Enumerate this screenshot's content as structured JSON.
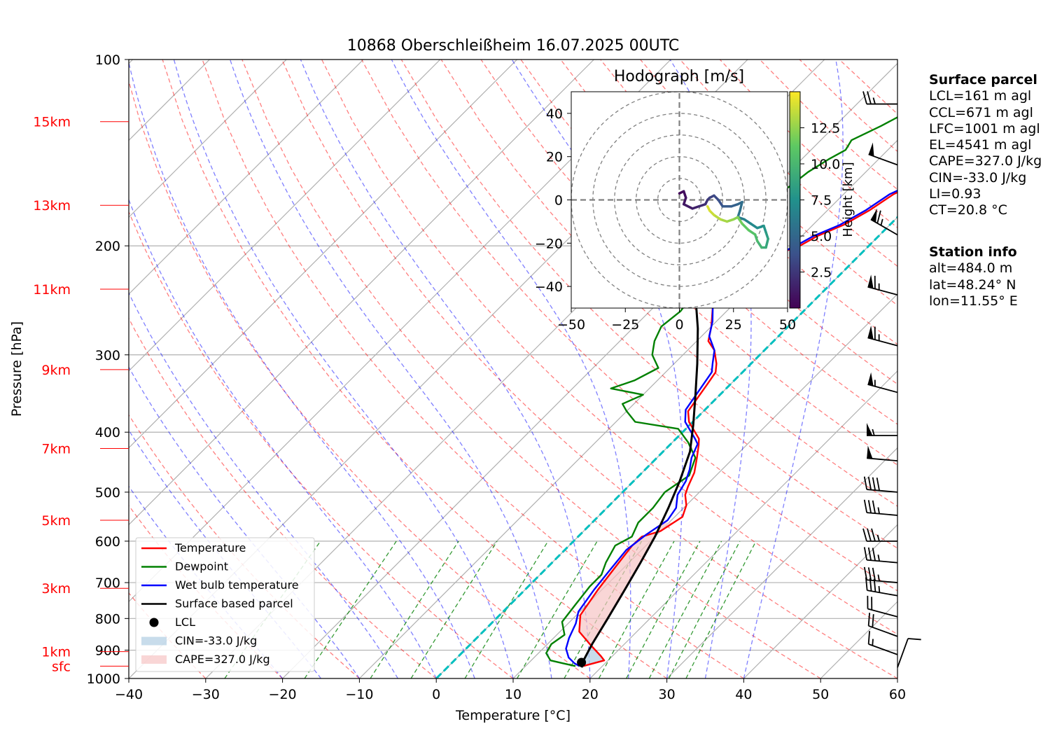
{
  "chart_data": {
    "type": "skew-t",
    "title": "10868 Oberschleißheim 16.07.2025 00UTC",
    "xlabel": "Temperature [°C]",
    "ylabel": "Pressure [hPa]",
    "xlim": [
      -40,
      60
    ],
    "ylim": [
      1000,
      100
    ],
    "x_ticks": [
      "−40",
      "−30",
      "−20",
      "−10",
      "0",
      "10",
      "20",
      "30",
      "40",
      "50",
      "60"
    ],
    "y_ticks": [
      {
        "p": 1000,
        "label": "1000"
      },
      {
        "p": 900,
        "label": "900"
      },
      {
        "p": 800,
        "label": "800"
      },
      {
        "p": 700,
        "label": "700"
      },
      {
        "p": 600,
        "label": "600"
      },
      {
        "p": 500,
        "label": "500"
      },
      {
        "p": 400,
        "label": "400"
      },
      {
        "p": 300,
        "label": "300"
      },
      {
        "p": 200,
        "label": "200"
      },
      {
        "p": 100,
        "label": "100"
      }
    ],
    "height_labels": [
      {
        "label": "sfc",
        "p": 955
      },
      {
        "label": "1km",
        "p": 905
      },
      {
        "label": "3km",
        "p": 715
      },
      {
        "label": "5km",
        "p": 555
      },
      {
        "label": "7km",
        "p": 425
      },
      {
        "label": "9km",
        "p": 317
      },
      {
        "label": "11km",
        "p": 235
      },
      {
        "label": "13km",
        "p": 172
      },
      {
        "label": "15km",
        "p": 126
      }
    ],
    "series": [
      {
        "name": "Temperature",
        "color": "#ff0000",
        "points": [
          [
            17.5,
            955
          ],
          [
            19.5,
            935
          ],
          [
            18.5,
            920
          ],
          [
            15.5,
            880
          ],
          [
            12.5,
            840
          ],
          [
            10.5,
            790
          ],
          [
            9.5,
            720
          ],
          [
            8.8,
            660
          ],
          [
            8.2,
            610
          ],
          [
            8.3,
            590
          ],
          [
            10.0,
            578
          ],
          [
            11.0,
            548
          ],
          [
            10.0,
            525
          ],
          [
            8.5,
            505
          ],
          [
            7.8,
            490
          ],
          [
            6.8,
            465
          ],
          [
            5.2,
            440
          ],
          [
            3.8,
            420
          ],
          [
            3.0,
            410
          ],
          [
            -0.5,
            385
          ],
          [
            -2.0,
            370
          ],
          [
            -3.0,
            335
          ],
          [
            -3.5,
            320
          ],
          [
            -4.5,
            310
          ],
          [
            -6.5,
            295
          ],
          [
            -8.5,
            285
          ],
          [
            -10.0,
            270
          ],
          [
            -12.5,
            250
          ],
          [
            -14.0,
            238
          ],
          [
            -12.5,
            232
          ],
          [
            -12.0,
            226
          ],
          [
            -11.0,
            220
          ],
          [
            -11.0,
            212
          ],
          [
            -10.5,
            205
          ],
          [
            -9.0,
            200
          ],
          [
            -8.0,
            193
          ],
          [
            -6.0,
            185
          ],
          [
            -4.5,
            175
          ],
          [
            -3.5,
            165
          ],
          [
            -1.0,
            155
          ],
          [
            0.0,
            148
          ],
          [
            -0.5,
            140
          ],
          [
            1.0,
            135
          ],
          [
            3.0,
            130
          ],
          [
            5.0,
            125
          ],
          [
            6.5,
            120
          ],
          [
            7.5,
            118
          ],
          [
            8.0,
            117
          ]
        ]
      },
      {
        "name": "Dewpoint",
        "color": "#008000",
        "points": [
          [
            16.5,
            955
          ],
          [
            14.5,
            945
          ],
          [
            12.5,
            935
          ],
          [
            11.0,
            910
          ],
          [
            10.5,
            880
          ],
          [
            11.0,
            850
          ],
          [
            9.0,
            810
          ],
          [
            8.5,
            760
          ],
          [
            8.0,
            710
          ],
          [
            8.0,
            680
          ],
          [
            7.0,
            650
          ],
          [
            6.0,
            610
          ],
          [
            7.0,
            590
          ],
          [
            6.0,
            560
          ],
          [
            6.0,
            530
          ],
          [
            5.5,
            500
          ],
          [
            6.5,
            470
          ],
          [
            5.0,
            440
          ],
          [
            2.0,
            415
          ],
          [
            -1.0,
            395
          ],
          [
            -7.5,
            385
          ],
          [
            -10.0,
            370
          ],
          [
            -11.5,
            360
          ],
          [
            -10.0,
            348
          ],
          [
            -15.0,
            340
          ],
          [
            -13.0,
            330
          ],
          [
            -11.5,
            315
          ],
          [
            -14.0,
            300
          ],
          [
            -15.5,
            285
          ],
          [
            -16.5,
            270
          ],
          [
            -16.0,
            255
          ],
          [
            -16.5,
            240
          ],
          [
            -17.0,
            230
          ],
          [
            -15.0,
            225
          ],
          [
            -16.0,
            222
          ],
          [
            -22.0,
            220
          ],
          [
            -21.0,
            210
          ],
          [
            -22.0,
            198
          ],
          [
            -20.0,
            195
          ],
          [
            -23.5,
            190
          ],
          [
            -21.0,
            185
          ],
          [
            -21.5,
            180
          ],
          [
            -19.0,
            170
          ],
          [
            -18.0,
            160
          ],
          [
            -17.5,
            152
          ],
          [
            -16.5,
            145
          ],
          [
            -15.5,
            140
          ],
          [
            -16.0,
            135
          ],
          [
            -14.0,
            128
          ],
          [
            -12.5,
            122
          ],
          [
            -11.5,
            118
          ]
        ]
      },
      {
        "name": "Wet bulb temperature",
        "color": "#0000ff",
        "points": [
          [
            17.0,
            955
          ],
          [
            16.0,
            945
          ],
          [
            14.5,
            925
          ],
          [
            13.0,
            895
          ],
          [
            12.0,
            860
          ],
          [
            11.0,
            815
          ],
          [
            9.8,
            780
          ],
          [
            9.0,
            720
          ],
          [
            8.5,
            670
          ],
          [
            8.0,
            620
          ],
          [
            8.6,
            585
          ],
          [
            9.5,
            555
          ],
          [
            9.0,
            530
          ],
          [
            7.5,
            505
          ],
          [
            6.8,
            480
          ],
          [
            5.8,
            460
          ],
          [
            4.5,
            440
          ],
          [
            3.5,
            418
          ],
          [
            2.5,
            410
          ],
          [
            -1.0,
            385
          ],
          [
            -2.5,
            368
          ],
          [
            -3.5,
            335
          ],
          [
            -4.0,
            320
          ],
          [
            -5.0,
            310
          ],
          [
            -6.5,
            295
          ],
          [
            -9.0,
            280
          ],
          [
            -10.5,
            265
          ],
          [
            -12.5,
            250
          ],
          [
            -14.5,
            238
          ],
          [
            -13.0,
            232
          ],
          [
            -12.5,
            226
          ],
          [
            -11.5,
            220
          ],
          [
            -11.0,
            212
          ],
          [
            -10.5,
            205
          ],
          [
            -9.5,
            200
          ],
          [
            -8.5,
            193
          ],
          [
            -6.5,
            185
          ],
          [
            -5.0,
            175
          ],
          [
            -4.0,
            165
          ],
          [
            -1.5,
            155
          ],
          [
            -0.5,
            148
          ],
          [
            -1.0,
            140
          ],
          [
            0.5,
            135
          ],
          [
            2.5,
            130
          ],
          [
            4.5,
            125
          ],
          [
            6.0,
            120
          ],
          [
            7.0,
            118
          ],
          [
            7.5,
            117
          ]
        ]
      },
      {
        "name": "Surface based parcel",
        "color": "#000000",
        "points": [
          [
            17.5,
            960
          ],
          [
            16.8,
            935
          ],
          [
            15.8,
            880
          ],
          [
            14.5,
            800
          ],
          [
            13.0,
            720
          ],
          [
            11.5,
            650
          ],
          [
            10.0,
            590
          ],
          [
            8.0,
            530
          ],
          [
            6.0,
            480
          ],
          [
            3.5,
            430
          ],
          [
            0.5,
            390
          ],
          [
            -3.0,
            350
          ],
          [
            -7.0,
            310
          ],
          [
            -11.5,
            272
          ],
          [
            -16.5,
            238
          ],
          [
            -21.5,
            208
          ],
          [
            -27.0,
            180
          ],
          [
            -33.0,
            155
          ],
          [
            -38.5,
            135
          ],
          [
            -43.0,
            122
          ]
        ]
      }
    ],
    "lcl": {
      "t": 16.8,
      "p": 942
    },
    "cin_area": {
      "label": "CIN=-33.0 J/kg",
      "color": "#b0cde3"
    },
    "cape_area": {
      "label": "CAPE=327.0 J/kg",
      "color": "#f7c4c4"
    },
    "legend": {
      "placement": "lower-left",
      "items": [
        {
          "label": "Temperature",
          "color": "#ff0000",
          "kind": "line"
        },
        {
          "label": "Dewpoint",
          "color": "#008000",
          "kind": "line"
        },
        {
          "label": "Wet bulb temperature",
          "color": "#0000ff",
          "kind": "line"
        },
        {
          "label": "Surface based parcel",
          "color": "#000000",
          "kind": "line"
        },
        {
          "label": "LCL",
          "color": "#000000",
          "kind": "dot"
        },
        {
          "label": "CIN=-33.0 J/kg",
          "color": "#b0cde3",
          "kind": "patch"
        },
        {
          "label": "CAPE=327.0 J/kg",
          "color": "#f7c4c4",
          "kind": "patch"
        }
      ]
    },
    "wind_barbs": [
      {
        "p": 960,
        "dir_deg": 20,
        "speed_kt": 10
      },
      {
        "p": 915,
        "dir_deg": 290,
        "speed_kt": 15
      },
      {
        "p": 855,
        "dir_deg": 290,
        "speed_kt": 20
      },
      {
        "p": 795,
        "dir_deg": 285,
        "speed_kt": 20
      },
      {
        "p": 735,
        "dir_deg": 280,
        "speed_kt": 35
      },
      {
        "p": 700,
        "dir_deg": 275,
        "speed_kt": 35
      },
      {
        "p": 650,
        "dir_deg": 275,
        "speed_kt": 35
      },
      {
        "p": 600,
        "dir_deg": 270,
        "speed_kt": 35
      },
      {
        "p": 545,
        "dir_deg": 275,
        "speed_kt": 35
      },
      {
        "p": 500,
        "dir_deg": 275,
        "speed_kt": 40
      },
      {
        "p": 445,
        "dir_deg": 275,
        "speed_kt": 50
      },
      {
        "p": 405,
        "dir_deg": 270,
        "speed_kt": 55
      },
      {
        "p": 345,
        "dir_deg": 285,
        "speed_kt": 55
      },
      {
        "p": 290,
        "dir_deg": 285,
        "speed_kt": 65
      },
      {
        "p": 240,
        "dir_deg": 285,
        "speed_kt": 65
      },
      {
        "p": 192,
        "dir_deg": 300,
        "speed_kt": 65
      },
      {
        "p": 148,
        "dir_deg": 290,
        "speed_kt": 50
      },
      {
        "p": 118,
        "dir_deg": 270,
        "speed_kt": 25
      }
    ],
    "inset_hodograph": {
      "title": "Hodograph [m/s]",
      "xlim": [
        -50,
        50
      ],
      "ylim": [
        -50,
        50
      ],
      "x_ticks": [
        "−50",
        "−25",
        "0",
        "25",
        "50"
      ],
      "y_ticks": [
        "40",
        "20",
        "0",
        "−20",
        "−40"
      ],
      "rings_ms": [
        10,
        20,
        30,
        40,
        50
      ],
      "colorbar_label": "Height [km]",
      "colorbar_ticks": [
        "2.5",
        "5.0",
        "7.5",
        "10.0",
        "12.5"
      ],
      "colorbar_range": [
        0,
        15
      ],
      "path": [
        {
          "u": 0,
          "v": 3,
          "h": 0.2
        },
        {
          "u": 2,
          "v": 4,
          "h": 0.5
        },
        {
          "u": 3,
          "v": 1,
          "h": 0.8
        },
        {
          "u": 2,
          "v": -2,
          "h": 1.0
        },
        {
          "u": 6,
          "v": -4,
          "h": 1.3
        },
        {
          "u": 9,
          "v": -3,
          "h": 1.7
        },
        {
          "u": 12,
          "v": -2,
          "h": 2.1
        },
        {
          "u": 13,
          "v": 0,
          "h": 2.4
        },
        {
          "u": 14,
          "v": 1,
          "h": 2.8
        },
        {
          "u": 16,
          "v": 2,
          "h": 3.2
        },
        {
          "u": 18,
          "v": 0,
          "h": 3.6
        },
        {
          "u": 20,
          "v": -3,
          "h": 4.0
        },
        {
          "u": 24,
          "v": -3,
          "h": 4.4
        },
        {
          "u": 27,
          "v": -2,
          "h": 4.8
        },
        {
          "u": 29,
          "v": -1,
          "h": 5.2
        },
        {
          "u": 28,
          "v": -5,
          "h": 5.6
        },
        {
          "u": 27,
          "v": -8,
          "h": 6.0
        },
        {
          "u": 30,
          "v": -9,
          "h": 6.4
        },
        {
          "u": 33,
          "v": -11,
          "h": 6.8
        },
        {
          "u": 36,
          "v": -13,
          "h": 7.2
        },
        {
          "u": 39,
          "v": -12,
          "h": 7.6
        },
        {
          "u": 40,
          "v": -15,
          "h": 8.0
        },
        {
          "u": 41,
          "v": -18,
          "h": 8.5
        },
        {
          "u": 40,
          "v": -22,
          "h": 9.0
        },
        {
          "u": 38,
          "v": -22,
          "h": 9.5
        },
        {
          "u": 36,
          "v": -19,
          "h": 10.0
        },
        {
          "u": 35,
          "v": -16,
          "h": 10.5
        },
        {
          "u": 32,
          "v": -14,
          "h": 11.0
        },
        {
          "u": 29,
          "v": -11,
          "h": 11.5
        },
        {
          "u": 27,
          "v": -8,
          "h": 12.0
        },
        {
          "u": 25,
          "v": -9,
          "h": 12.4
        },
        {
          "u": 22,
          "v": -10,
          "h": 12.8
        },
        {
          "u": 19,
          "v": -9,
          "h": 13.2
        },
        {
          "u": 16,
          "v": -7,
          "h": 13.6
        },
        {
          "u": 14,
          "v": -5,
          "h": 14.0
        },
        {
          "u": 13,
          "v": -3,
          "h": 14.3
        }
      ]
    }
  },
  "surface_parcel": {
    "title": "Surface parcel",
    "lines": [
      "LCL=161 m agl",
      "CCL=671 m agl",
      "LFC=1001 m agl",
      "EL=4541 m agl",
      "CAPE=327.0 J/kg",
      "CIN=-33.0 J/kg",
      "LI=0.93",
      "CT=20.8 °C"
    ]
  },
  "station_info": {
    "title": "Station info",
    "lines": [
      "alt=484.0 m",
      "lat=48.24° N",
      "lon=11.55° E"
    ]
  }
}
